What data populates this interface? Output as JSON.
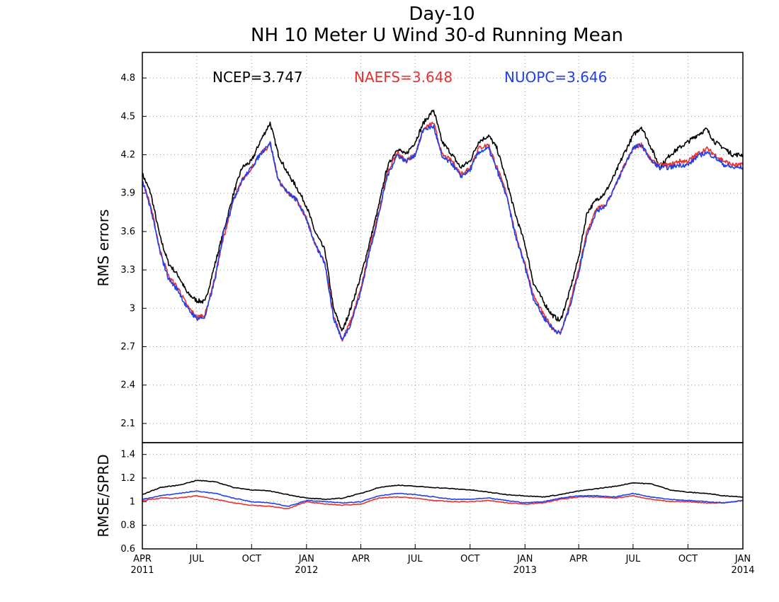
{
  "chart_data": [
    {
      "type": "line",
      "title": "Day-10",
      "subtitle": "NH 10 Meter U Wind 30-d Running Mean",
      "ylabel": "RMS errors",
      "ylim": [
        1.95,
        5.0
      ],
      "yticks": [
        "2.1",
        "2.4",
        "2.7",
        "3",
        "3.3",
        "3.6",
        "3.9",
        "4.2",
        "4.5",
        "4.8"
      ],
      "xlim": [
        "2011-04-01",
        "2014-01-01"
      ],
      "grid": true,
      "legend": {
        "placement": "top",
        "entries": [
          "NCEP=3.747",
          "NAEFS=3.648",
          "NUOPC=3.646"
        ]
      },
      "x": [
        "2011-04-01",
        "2011-04-15",
        "2011-05-01",
        "2011-05-15",
        "2011-06-01",
        "2011-06-15",
        "2011-07-01",
        "2011-07-15",
        "2011-08-01",
        "2011-08-15",
        "2011-09-01",
        "2011-09-15",
        "2011-10-01",
        "2011-10-15",
        "2011-11-01",
        "2011-11-15",
        "2011-12-01",
        "2011-12-15",
        "2012-01-01",
        "2012-01-15",
        "2012-02-01",
        "2012-02-15",
        "2012-03-01",
        "2012-03-15",
        "2012-04-01",
        "2012-04-15",
        "2012-05-01",
        "2012-05-15",
        "2012-06-01",
        "2012-06-15",
        "2012-07-01",
        "2012-07-15",
        "2012-08-01",
        "2012-08-15",
        "2012-09-01",
        "2012-09-15",
        "2012-10-01",
        "2012-10-15",
        "2012-11-01",
        "2012-11-15",
        "2012-12-01",
        "2012-12-15",
        "2013-01-01",
        "2013-01-15",
        "2013-02-01",
        "2013-02-15",
        "2013-03-01",
        "2013-03-15",
        "2013-04-01",
        "2013-04-15",
        "2013-05-01",
        "2013-05-15",
        "2013-06-01",
        "2013-06-15",
        "2013-07-01",
        "2013-07-15",
        "2013-08-01",
        "2013-08-15",
        "2013-09-01",
        "2013-09-15",
        "2013-10-01",
        "2013-10-15",
        "2013-11-01",
        "2013-11-15",
        "2013-12-01",
        "2013-12-15",
        "2014-01-01"
      ],
      "series": [
        {
          "name": "NCEP",
          "color": "#000000",
          "values": [
            4.05,
            3.9,
            3.55,
            3.35,
            3.25,
            3.12,
            3.06,
            3.05,
            3.35,
            3.6,
            3.9,
            4.1,
            4.15,
            4.3,
            4.45,
            4.2,
            4.05,
            3.95,
            3.8,
            3.6,
            3.45,
            3.0,
            2.82,
            3.0,
            3.25,
            3.5,
            3.8,
            4.1,
            4.25,
            4.2,
            4.3,
            4.45,
            4.55,
            4.3,
            4.2,
            4.1,
            4.15,
            4.3,
            4.35,
            4.25,
            4.0,
            3.75,
            3.5,
            3.2,
            3.05,
            2.95,
            2.9,
            3.1,
            3.4,
            3.75,
            3.85,
            3.9,
            4.05,
            4.2,
            4.35,
            4.42,
            4.25,
            4.1,
            4.2,
            4.25,
            4.3,
            4.35,
            4.4,
            4.3,
            4.25,
            4.2,
            4.2
          ]
        },
        {
          "name": "NAEFS",
          "color": "#e83030",
          "values": [
            4.0,
            3.8,
            3.45,
            3.25,
            3.15,
            3.02,
            2.93,
            2.95,
            3.25,
            3.55,
            3.85,
            4.0,
            4.1,
            4.2,
            4.28,
            4.0,
            3.9,
            3.85,
            3.7,
            3.5,
            3.35,
            2.95,
            2.75,
            2.9,
            3.15,
            3.45,
            3.75,
            4.05,
            4.22,
            4.15,
            4.2,
            4.4,
            4.45,
            4.2,
            4.15,
            4.05,
            4.1,
            4.25,
            4.28,
            4.1,
            3.9,
            3.6,
            3.35,
            3.1,
            2.95,
            2.85,
            2.8,
            3.0,
            3.3,
            3.6,
            3.78,
            3.8,
            3.95,
            4.1,
            4.25,
            4.28,
            4.15,
            4.12,
            4.12,
            4.15,
            4.15,
            4.2,
            4.25,
            4.2,
            4.15,
            4.12,
            4.12
          ]
        },
        {
          "name": "NUOPC",
          "color": "#2040e8",
          "values": [
            4.0,
            3.78,
            3.43,
            3.23,
            3.13,
            3.0,
            2.92,
            2.93,
            3.23,
            3.6,
            3.85,
            4.0,
            4.1,
            4.2,
            4.3,
            4.0,
            3.9,
            3.85,
            3.7,
            3.5,
            3.35,
            2.93,
            2.75,
            2.88,
            3.13,
            3.43,
            3.73,
            4.03,
            4.2,
            4.15,
            4.2,
            4.4,
            4.42,
            4.18,
            4.13,
            4.03,
            4.08,
            4.22,
            4.25,
            4.08,
            3.88,
            3.58,
            3.33,
            3.08,
            2.93,
            2.85,
            2.8,
            2.98,
            3.28,
            3.58,
            3.76,
            3.8,
            3.95,
            4.1,
            4.25,
            4.28,
            4.15,
            4.1,
            4.1,
            4.12,
            4.12,
            4.18,
            4.22,
            4.18,
            4.12,
            4.1,
            4.1
          ]
        }
      ]
    },
    {
      "type": "line",
      "ylabel": "RMSE/SPRD",
      "ylim": [
        0.6,
        1.5
      ],
      "yticks": [
        "0.6",
        "0.8",
        "1",
        "1.2",
        "1.4"
      ],
      "xlim": [
        "2011-04-01",
        "2014-01-01"
      ],
      "grid": true,
      "xticks": [
        {
          "date": "2011-04-01",
          "label": "APR",
          "year": "2011"
        },
        {
          "date": "2011-07-01",
          "label": "JUL",
          "year": ""
        },
        {
          "date": "2011-10-01",
          "label": "OCT",
          "year": ""
        },
        {
          "date": "2012-01-01",
          "label": "JAN",
          "year": "2012"
        },
        {
          "date": "2012-04-01",
          "label": "APR",
          "year": ""
        },
        {
          "date": "2012-07-01",
          "label": "JUL",
          "year": ""
        },
        {
          "date": "2012-10-01",
          "label": "OCT",
          "year": ""
        },
        {
          "date": "2013-01-01",
          "label": "JAN",
          "year": "2013"
        },
        {
          "date": "2013-04-01",
          "label": "APR",
          "year": ""
        },
        {
          "date": "2013-07-01",
          "label": "JUL",
          "year": ""
        },
        {
          "date": "2013-10-01",
          "label": "OCT",
          "year": ""
        },
        {
          "date": "2014-01-01",
          "label": "JAN",
          "year": "2014"
        }
      ],
      "x": [
        "2011-04-01",
        "2011-05-01",
        "2011-06-01",
        "2011-07-01",
        "2011-08-01",
        "2011-09-01",
        "2011-10-01",
        "2011-11-01",
        "2011-12-01",
        "2012-01-01",
        "2012-02-01",
        "2012-03-01",
        "2012-04-01",
        "2012-05-01",
        "2012-06-01",
        "2012-07-01",
        "2012-08-01",
        "2012-09-01",
        "2012-10-01",
        "2012-11-01",
        "2012-12-01",
        "2013-01-01",
        "2013-02-01",
        "2013-03-01",
        "2013-04-01",
        "2013-05-01",
        "2013-06-01",
        "2013-07-01",
        "2013-08-01",
        "2013-09-01",
        "2013-10-01",
        "2013-11-01",
        "2013-12-01",
        "2014-01-01"
      ],
      "series": [
        {
          "name": "NCEP",
          "color": "#000000",
          "values": [
            1.06,
            1.12,
            1.14,
            1.18,
            1.17,
            1.12,
            1.1,
            1.09,
            1.06,
            1.03,
            1.02,
            1.03,
            1.07,
            1.12,
            1.14,
            1.13,
            1.12,
            1.11,
            1.1,
            1.08,
            1.06,
            1.05,
            1.04,
            1.06,
            1.09,
            1.11,
            1.13,
            1.16,
            1.15,
            1.1,
            1.08,
            1.07,
            1.05,
            1.04
          ]
        },
        {
          "name": "NAEFS",
          "color": "#e83030",
          "values": [
            1.01,
            1.03,
            1.03,
            1.05,
            1.02,
            0.99,
            0.97,
            0.96,
            0.94,
            1.0,
            0.98,
            0.97,
            0.98,
            1.03,
            1.04,
            1.03,
            1.01,
            1.0,
            1.0,
            1.01,
            0.99,
            0.98,
            0.99,
            1.02,
            1.04,
            1.04,
            1.03,
            1.05,
            1.02,
            1.0,
            1.0,
            0.99,
            0.99,
            1.01
          ]
        },
        {
          "name": "NUOPC",
          "color": "#2040e8",
          "values": [
            1.02,
            1.05,
            1.07,
            1.09,
            1.07,
            1.03,
            1.0,
            0.99,
            0.96,
            1.01,
            1.0,
            0.99,
            1.0,
            1.05,
            1.07,
            1.06,
            1.04,
            1.02,
            1.02,
            1.03,
            1.01,
            0.99,
            1.0,
            1.03,
            1.05,
            1.05,
            1.04,
            1.07,
            1.04,
            1.02,
            1.01,
            1.0,
            0.99,
            1.01
          ]
        }
      ]
    }
  ]
}
